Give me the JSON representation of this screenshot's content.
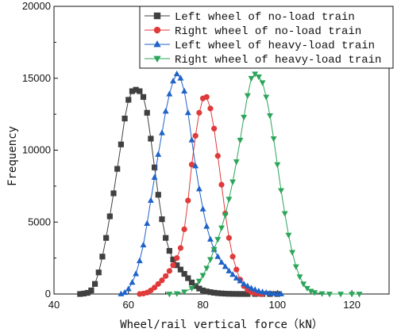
{
  "chart_data": {
    "type": "scatter",
    "xlabel": "Wheel/rail vertical force（kN）",
    "ylabel": "Frequency",
    "xlim": [
      40,
      130
    ],
    "ylim": [
      0,
      20000
    ],
    "x_ticks": [
      40,
      60,
      80,
      100,
      120
    ],
    "y_ticks": [
      0,
      5000,
      10000,
      15000,
      20000
    ],
    "legend_position": "top-right",
    "grid": false,
    "series": [
      {
        "name": "Left wheel of no-load train",
        "color": "#404040",
        "marker": "square",
        "points": [
          [
            47,
            0
          ],
          [
            48,
            30
          ],
          [
            49,
            80
          ],
          [
            50,
            250
          ],
          [
            51,
            700
          ],
          [
            52,
            1500
          ],
          [
            53,
            2600
          ],
          [
            54,
            3900
          ],
          [
            55,
            5400
          ],
          [
            56,
            7000
          ],
          [
            57,
            8700
          ],
          [
            58,
            10400
          ],
          [
            59,
            12200
          ],
          [
            60,
            13500
          ],
          [
            61,
            14100
          ],
          [
            62,
            14200
          ],
          [
            63,
            14100
          ],
          [
            64,
            13700
          ],
          [
            65,
            12600
          ],
          [
            66,
            10800
          ],
          [
            67,
            8800
          ],
          [
            68,
            6900
          ],
          [
            69,
            5200
          ],
          [
            70,
            3900
          ],
          [
            71,
            3000
          ],
          [
            72,
            2400
          ],
          [
            73,
            2000
          ],
          [
            74,
            1700
          ],
          [
            75,
            1400
          ],
          [
            76,
            1100
          ],
          [
            77,
            800
          ],
          [
            78,
            550
          ],
          [
            79,
            380
          ],
          [
            80,
            250
          ],
          [
            81,
            180
          ],
          [
            82,
            130
          ],
          [
            83,
            90
          ],
          [
            84,
            60
          ],
          [
            85,
            40
          ],
          [
            86,
            25
          ],
          [
            87,
            15
          ],
          [
            88,
            8
          ],
          [
            89,
            4
          ],
          [
            90,
            2
          ],
          [
            91,
            1
          ],
          [
            92,
            0
          ],
          [
            94,
            0
          ],
          [
            96,
            0
          ],
          [
            98,
            0
          ],
          [
            100,
            0
          ]
        ]
      },
      {
        "name": "Right wheel of no-load train",
        "color": "#e03a3a",
        "marker": "circle",
        "points": [
          [
            63,
            0
          ],
          [
            64,
            30
          ],
          [
            65,
            100
          ],
          [
            66,
            250
          ],
          [
            67,
            450
          ],
          [
            68,
            700
          ],
          [
            69,
            950
          ],
          [
            70,
            1250
          ],
          [
            71,
            1600
          ],
          [
            72,
            2000
          ],
          [
            73,
            2500
          ],
          [
            74,
            3200
          ],
          [
            75,
            4500
          ],
          [
            76,
            6500
          ],
          [
            77,
            9000
          ],
          [
            78,
            11000
          ],
          [
            79,
            12600
          ],
          [
            80,
            13600
          ],
          [
            81,
            13700
          ],
          [
            82,
            12900
          ],
          [
            83,
            11500
          ],
          [
            84,
            9600
          ],
          [
            85,
            7600
          ],
          [
            86,
            5600
          ],
          [
            87,
            3900
          ],
          [
            88,
            2600
          ],
          [
            89,
            1700
          ],
          [
            90,
            1000
          ],
          [
            91,
            550
          ],
          [
            92,
            280
          ],
          [
            93,
            120
          ],
          [
            94,
            50
          ],
          [
            95,
            15
          ],
          [
            96,
            0
          ]
        ]
      },
      {
        "name": "Left wheel of heavy-load train",
        "color": "#1f63c8",
        "marker": "triangle-up",
        "points": [
          [
            58,
            0
          ],
          [
            59,
            100
          ],
          [
            60,
            350
          ],
          [
            61,
            800
          ],
          [
            62,
            1400
          ],
          [
            63,
            2300
          ],
          [
            64,
            3400
          ],
          [
            65,
            4900
          ],
          [
            66,
            6500
          ],
          [
            67,
            8100
          ],
          [
            68,
            9700
          ],
          [
            69,
            11200
          ],
          [
            70,
            12700
          ],
          [
            71,
            13900
          ],
          [
            72,
            14800
          ],
          [
            73,
            15300
          ],
          [
            74,
            15000
          ],
          [
            75,
            14100
          ],
          [
            76,
            12600
          ],
          [
            77,
            10700
          ],
          [
            78,
            8900
          ],
          [
            79,
            7300
          ],
          [
            80,
            5900
          ],
          [
            81,
            4700
          ],
          [
            82,
            3800
          ],
          [
            83,
            3100
          ],
          [
            84,
            2600
          ],
          [
            85,
            2200
          ],
          [
            86,
            1900
          ],
          [
            87,
            1600
          ],
          [
            88,
            1350
          ],
          [
            89,
            1100
          ],
          [
            90,
            900
          ],
          [
            91,
            700
          ],
          [
            92,
            550
          ],
          [
            93,
            400
          ],
          [
            94,
            300
          ],
          [
            95,
            200
          ],
          [
            96,
            140
          ],
          [
            97,
            90
          ],
          [
            98,
            50
          ],
          [
            99,
            25
          ],
          [
            100,
            10
          ],
          [
            101,
            0
          ]
        ]
      },
      {
        "name": "Right wheel of heavy-load train",
        "color": "#2ca55a",
        "marker": "triangle-down",
        "points": [
          [
            71,
            0
          ],
          [
            73,
            30
          ],
          [
            75,
            150
          ],
          [
            77,
            400
          ],
          [
            79,
            900
          ],
          [
            80,
            1300
          ],
          [
            81,
            1800
          ],
          [
            82,
            2400
          ],
          [
            83,
            3100
          ],
          [
            84,
            3800
          ],
          [
            85,
            4600
          ],
          [
            86,
            5500
          ],
          [
            87,
            6600
          ],
          [
            88,
            7800
          ],
          [
            89,
            9200
          ],
          [
            90,
            10700
          ],
          [
            91,
            12300
          ],
          [
            92,
            13800
          ],
          [
            93,
            15000
          ],
          [
            94,
            15300
          ],
          [
            95,
            15100
          ],
          [
            96,
            14700
          ],
          [
            97,
            13700
          ],
          [
            98,
            12400
          ],
          [
            99,
            10800
          ],
          [
            100,
            9000
          ],
          [
            101,
            7200
          ],
          [
            102,
            5600
          ],
          [
            103,
            4100
          ],
          [
            104,
            2900
          ],
          [
            105,
            1900
          ],
          [
            106,
            1200
          ],
          [
            107,
            700
          ],
          [
            108,
            400
          ],
          [
            109,
            200
          ],
          [
            110,
            100
          ],
          [
            112,
            30
          ],
          [
            114,
            0
          ],
          [
            117,
            0
          ],
          [
            120,
            0
          ],
          [
            122,
            0
          ]
        ]
      }
    ]
  }
}
